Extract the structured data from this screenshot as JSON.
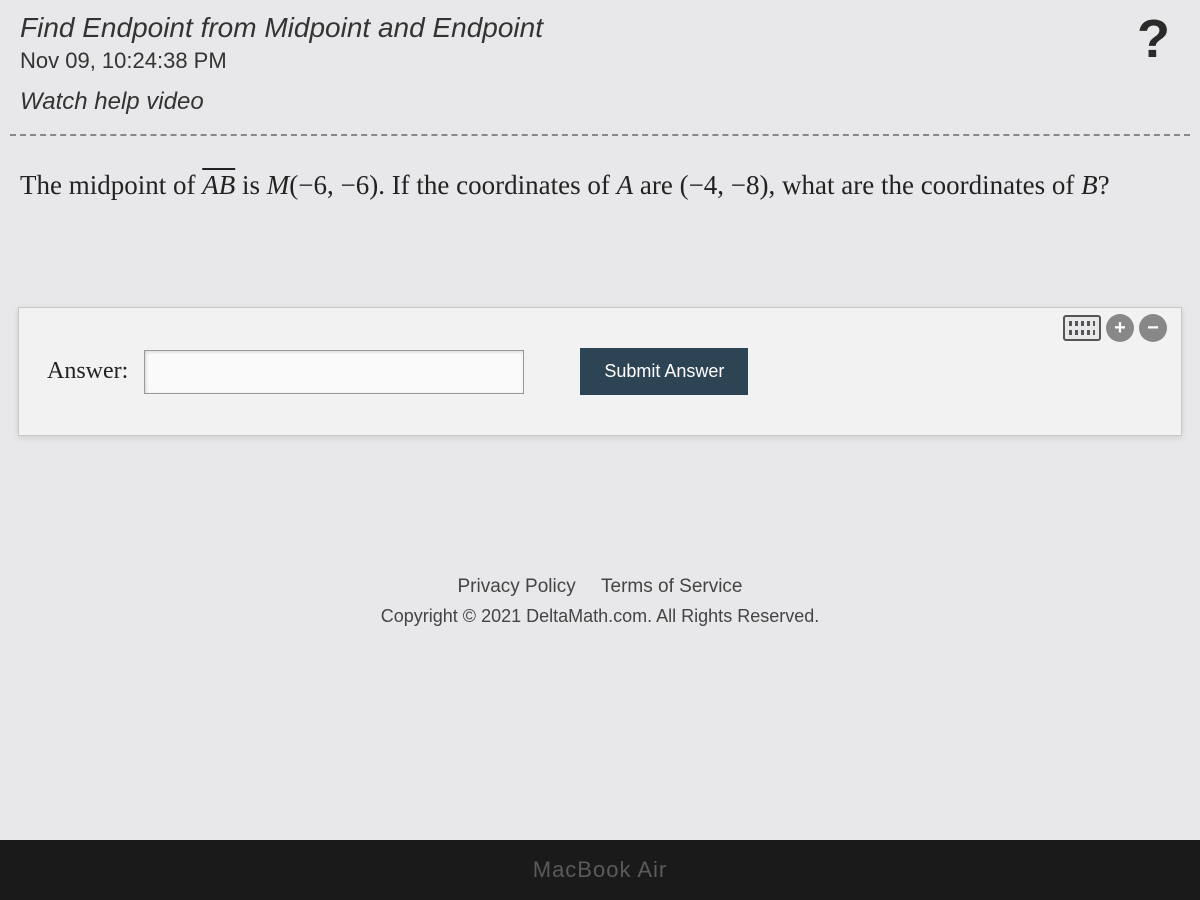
{
  "header": {
    "title": "Find Endpoint from Midpoint and Endpoint",
    "timestamp": "Nov 09, 10:24:38 PM",
    "help_link": "Watch help video",
    "help_icon": "?"
  },
  "question": {
    "prefix": "The midpoint of ",
    "segment": "AB",
    "mid_label": " is ",
    "midpoint_var": "M",
    "midpoint_coords": "(−6, −6)",
    "middle_text": ". If the coordinates of ",
    "point_a_var": "A",
    "a_text": " are ",
    "point_a_coords": "(−4, −8)",
    "suffix": ", what are the coordinates of ",
    "point_b_var": "B",
    "end": "?"
  },
  "answer": {
    "label": "Answer:",
    "value": "",
    "submit_label": "Submit Answer"
  },
  "tools": {
    "plus": "+",
    "minus": "−"
  },
  "footer": {
    "privacy": "Privacy Policy",
    "terms": "Terms of Service",
    "copyright": "Copyright © 2021 DeltaMath.com. All Rights Reserved."
  },
  "device": {
    "label": "MacBook Air"
  }
}
